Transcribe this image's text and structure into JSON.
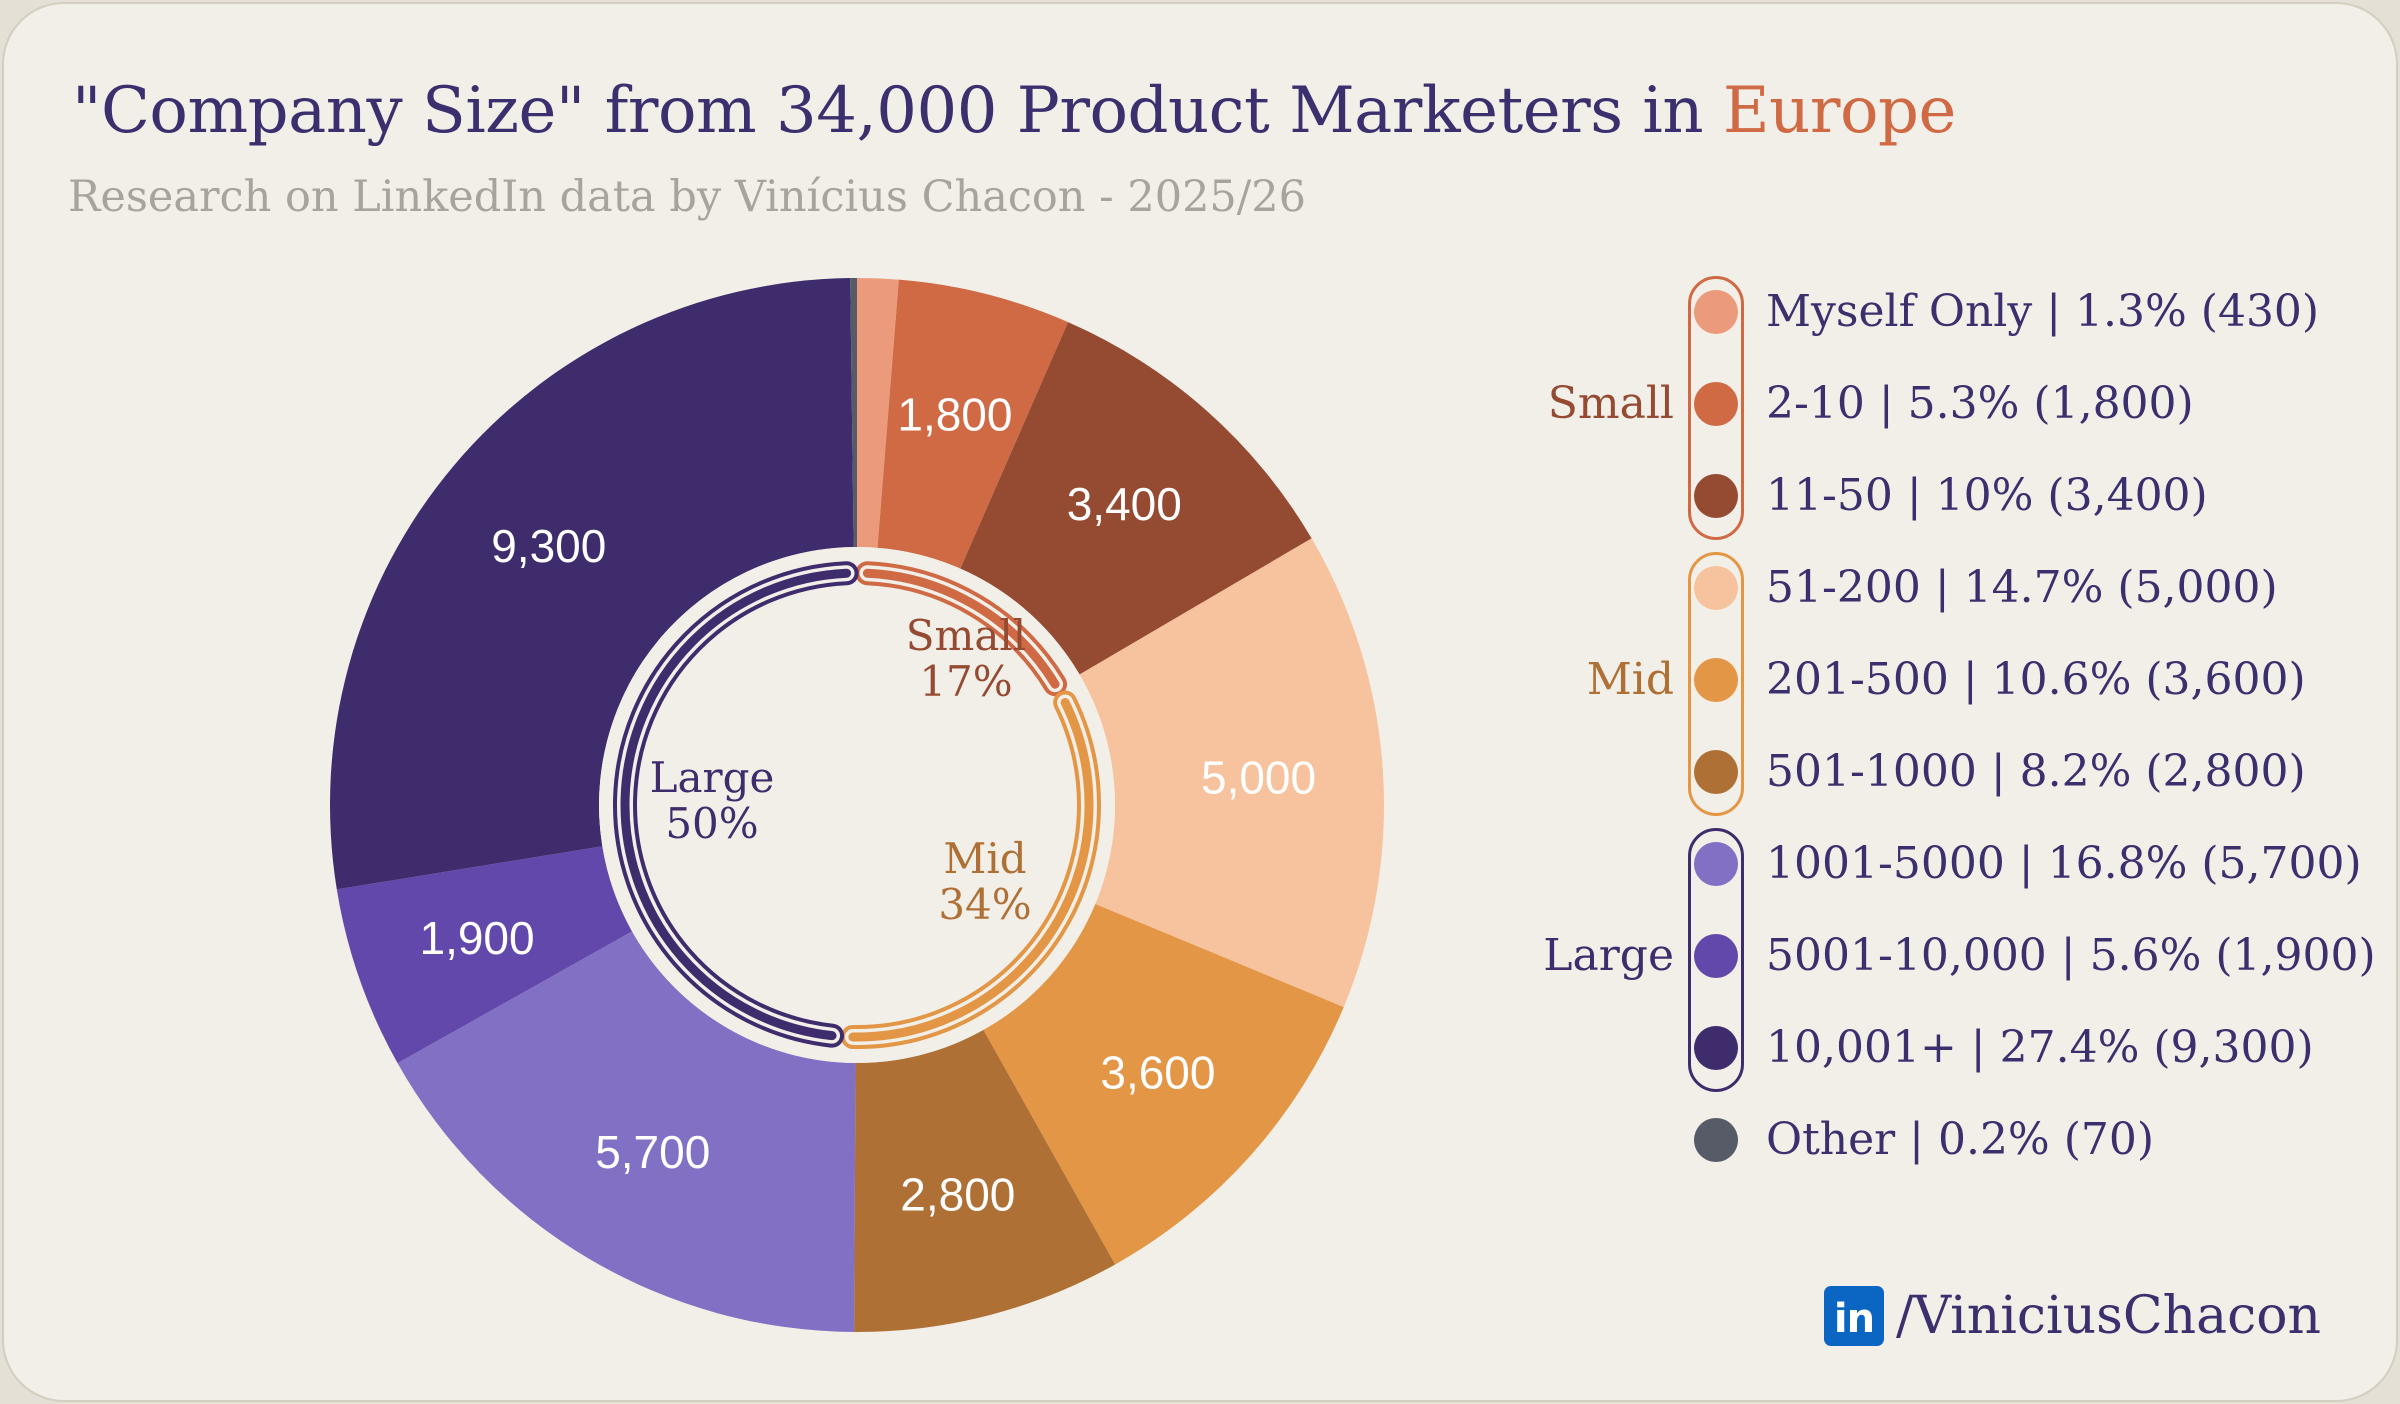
{
  "header": {
    "title_main": "\"Company Size\" from 34,000 Product Marketers in ",
    "title_accent": "Europe",
    "subtitle": "Research on LinkedIn data by Vinícius Chacon - 2025/26"
  },
  "chart_data": {
    "type": "pie",
    "subtype": "donut",
    "title": "\"Company Size\" from 34,000 Product Marketers in Europe",
    "subtitle": "Research on LinkedIn data by Vinícius Chacon - 2025/26",
    "total": 34000,
    "start": "12 o'clock, clockwise",
    "slices": [
      {
        "name": "Myself Only",
        "percent": "1.3%",
        "value": 430,
        "label": "",
        "group": "Small",
        "color": "#ec9a7c"
      },
      {
        "name": "2-10",
        "percent": "5.3%",
        "value": 1800,
        "label": "1,800",
        "group": "Small",
        "color": "#cf6a45"
      },
      {
        "name": "11-50",
        "percent": "10%",
        "value": 3400,
        "label": "3,400",
        "group": "Small",
        "color": "#954a32"
      },
      {
        "name": "51-200",
        "percent": "14.7%",
        "value": 5000,
        "label": "5,000",
        "group": "Mid",
        "color": "#f7c29e"
      },
      {
        "name": "201-500",
        "percent": "10.6%",
        "value": 3600,
        "label": "3,600",
        "group": "Mid",
        "color": "#e39645"
      },
      {
        "name": "501-1000",
        "percent": "8.2%",
        "value": 2800,
        "label": "2,800",
        "group": "Mid",
        "color": "#ae7035"
      },
      {
        "name": "1001-5000",
        "percent": "16.8%",
        "value": 5700,
        "label": "5,700",
        "group": "Large",
        "color": "#8270c5"
      },
      {
        "name": "5001-10,000",
        "percent": "5.6%",
        "value": 1900,
        "label": "1,900",
        "group": "Large",
        "color": "#6348ab"
      },
      {
        "name": "10,001+",
        "percent": "27.4%",
        "value": 9300,
        "label": "9,300",
        "group": "Large",
        "color": "#3e2c6d"
      },
      {
        "name": "Other",
        "percent": "0.2%",
        "value": 70,
        "label": "",
        "group": null,
        "color": "#575b68"
      }
    ],
    "groups": [
      {
        "name": "Small",
        "percent": "17%",
        "share": 0.17,
        "color": "#954a32",
        "ring_color": "#cf6a45"
      },
      {
        "name": "Mid",
        "percent": "34%",
        "share": 0.34,
        "color": "#ae7035",
        "ring_color": "#e39645"
      },
      {
        "name": "Large",
        "percent": "50%",
        "share": 0.5,
        "color": "#3e2c6d",
        "ring_color": "#3e2c6d"
      }
    ],
    "legend": {
      "placement": "right",
      "entries": [
        "Myself Only | 1.3% (430)",
        "2-10 | 5.3% (1,800)",
        "11-50 | 10% (3,400)",
        "51-200 | 14.7% (5,000)",
        "201-500 | 10.6% (3,600)",
        "501-1000 | 8.2% (2,800)",
        "1001-5000 | 16.8% (5,700)",
        "5001-10,000 | 5.6% (1,900)",
        "10,001+ | 27.4% (9,300)",
        "Other | 0.2% (70)"
      ]
    }
  },
  "footer": {
    "brand_icon": "linkedin-icon",
    "brand_icon_text": "in",
    "handle": "/ViniciusChacon"
  }
}
